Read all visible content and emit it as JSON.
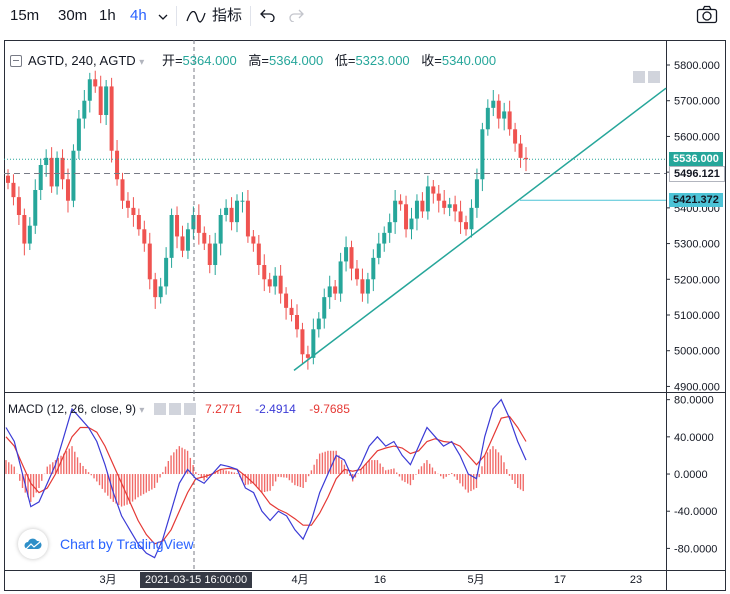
{
  "toolbar": {
    "intervals": [
      "15m",
      "30m",
      "1h",
      "4h"
    ],
    "active_interval": "4h",
    "indicators_label": "指标",
    "icons": [
      "chevron-down-icon",
      "indicator-wave-icon",
      "undo-icon",
      "redo-icon",
      "camera-icon"
    ]
  },
  "legend": {
    "symbol": "AGTD, 240, AGTD",
    "open_label": "开=",
    "open_value": "5364.000",
    "high_label": "高=",
    "high_value": "5364.000",
    "low_label": "低=",
    "low_value": "5323.000",
    "close_label": "收=",
    "close_value": "5340.000"
  },
  "macd": {
    "label": "MACD (12, 26, close, 9)",
    "value_hist": "7.2771",
    "value_macd": "-2.4914",
    "value_signal": "-9.7685"
  },
  "branding": {
    "text": "Chart by TradingView"
  },
  "price_tags": {
    "last": "5536.000",
    "dashed": "5496.121",
    "trendline": "5421.372"
  },
  "crosshair_time": "2021-03-15 16:00:00",
  "colors": {
    "up": "#26a69a",
    "down": "#ef5350",
    "macd_line": "#3b3bd6",
    "signal_line": "#e53935",
    "trendline": "#26a69a",
    "active": "#2962ff"
  },
  "chart_data": [
    {
      "type": "candlestick",
      "y_axis_ticks": [
        4900,
        5000,
        5100,
        5200,
        5300,
        5400,
        5500,
        5600,
        5700,
        5800
      ],
      "ylim": [
        4890,
        5870
      ],
      "x_tick_labels": [
        "3月",
        "4月",
        "16",
        "5月",
        "17",
        "23"
      ],
      "last_price": 5536.0,
      "dashed_level": 5496.121,
      "trendline_level": 5421.372,
      "ohlc_last_bar": {
        "open": 5364.0,
        "high": 5364.0,
        "low": 5323.0,
        "close": 5340.0
      },
      "close_path_approx": [
        5470,
        5430,
        5380,
        5300,
        5350,
        5450,
        5520,
        5540,
        5460,
        5540,
        5480,
        5420,
        5560,
        5650,
        5700,
        5760,
        5740,
        5660,
        5740,
        5560,
        5480,
        5420,
        5400,
        5380,
        5340,
        5300,
        5200,
        5150,
        5180,
        5260,
        5380,
        5320,
        5280,
        5340,
        5380,
        5330,
        5300,
        5240,
        5300,
        5380,
        5400,
        5360,
        5420,
        5420,
        5320,
        5300,
        5240,
        5200,
        5180,
        5210,
        5160,
        5120,
        5100,
        5060,
        4990,
        4980,
        5060,
        5090,
        5150,
        5180,
        5160,
        5250,
        5290,
        5230,
        5200,
        5160,
        5200,
        5260,
        5300,
        5330,
        5360,
        5420,
        5410,
        5340,
        5370,
        5420,
        5390,
        5460,
        5440,
        5420,
        5400,
        5410,
        5390,
        5360,
        5340,
        5400,
        5480,
        5620,
        5680,
        5700,
        5650,
        5670,
        5620,
        5580,
        5540,
        5536
      ]
    },
    {
      "type": "macd",
      "name": "MACD (12, 26, close, 9)",
      "ylim": [
        -100,
        85
      ],
      "y_axis_ticks": [
        -80,
        -40,
        0,
        40,
        80
      ],
      "macd_line_approx": [
        50,
        35,
        0,
        -35,
        -30,
        -10,
        10,
        40,
        70,
        60,
        50,
        35,
        10,
        -20,
        -45,
        -60,
        -75,
        -85,
        -90,
        -70,
        -40,
        -10,
        5,
        -5,
        -10,
        0,
        10,
        8,
        5,
        -15,
        -20,
        -40,
        -50,
        -40,
        -45,
        -60,
        -70,
        -50,
        -20,
        0,
        20,
        15,
        -5,
        10,
        30,
        40,
        30,
        35,
        20,
        10,
        30,
        50,
        40,
        30,
        35,
        20,
        0,
        -5,
        40,
        70,
        80,
        60,
        35,
        15
      ],
      "signal_line_approx": [
        40,
        30,
        10,
        -10,
        -20,
        -15,
        0,
        20,
        40,
        50,
        50,
        45,
        30,
        10,
        -10,
        -30,
        -50,
        -65,
        -75,
        -72,
        -60,
        -40,
        -20,
        -5,
        -3,
        0,
        5,
        6,
        5,
        -2,
        -10,
        -20,
        -32,
        -38,
        -42,
        -48,
        -55,
        -55,
        -42,
        -25,
        -5,
        5,
        3,
        5,
        15,
        25,
        28,
        30,
        28,
        22,
        25,
        35,
        38,
        35,
        34,
        30,
        20,
        10,
        20,
        40,
        60,
        62,
        50,
        35
      ],
      "histogram_approx": [
        15,
        8,
        -15,
        -30,
        -15,
        8,
        15,
        22,
        30,
        12,
        2,
        -8,
        -20,
        -30,
        -35,
        -32,
        -25,
        -20,
        -15,
        2,
        20,
        30,
        25,
        2,
        -7,
        1,
        5,
        3,
        1,
        -12,
        -10,
        -20,
        -18,
        -3,
        -4,
        -12,
        -15,
        4,
        22,
        25,
        25,
        10,
        -8,
        5,
        15,
        15,
        4,
        6,
        -7,
        -12,
        5,
        15,
        3,
        -5,
        1,
        -10,
        -20,
        -15,
        20,
        30,
        20,
        -2,
        -15,
        -20
      ]
    }
  ]
}
